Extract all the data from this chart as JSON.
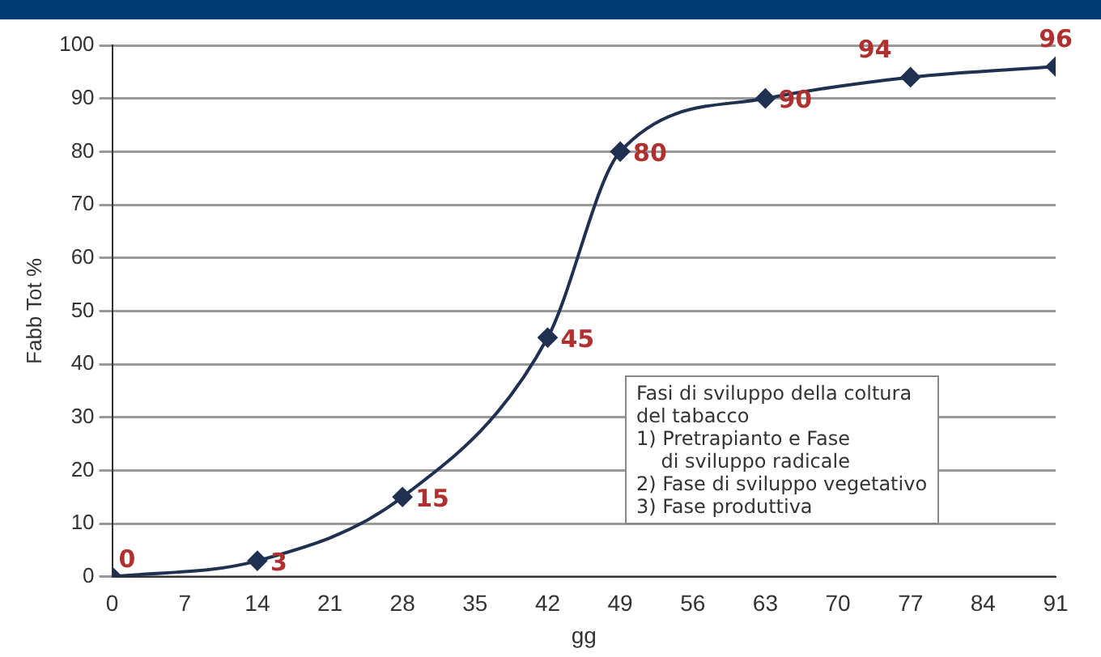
{
  "chart_data": {
    "type": "line",
    "xlabel": "gg",
    "ylabel": "Fabb Tot %",
    "x": [
      0,
      14,
      28,
      42,
      49,
      63,
      77,
      91
    ],
    "series": [
      {
        "color": "#1f3050",
        "values": [
          0,
          3,
          15,
          45,
          80,
          90,
          94,
          96
        ]
      }
    ],
    "xlim": [
      0,
      91
    ],
    "xticks": [
      0,
      7,
      14,
      21,
      28,
      35,
      42,
      49,
      56,
      63,
      70,
      77,
      84,
      91
    ],
    "ylim": [
      0,
      100
    ],
    "yticks": [
      0,
      10,
      20,
      30,
      40,
      50,
      60,
      70,
      80,
      90,
      100
    ],
    "grid": "y",
    "marker": "diamond",
    "line_style": "solid",
    "data_labels": true,
    "legend": false,
    "annotations": [
      "Fasi di sviluppo della coltura\ndel tabacco\n1) Pretrapianto e Fase\n    di sviluppo radicale\n2) Fase di sviluppo vegetativo\n3) Fase produttiva"
    ]
  }
}
